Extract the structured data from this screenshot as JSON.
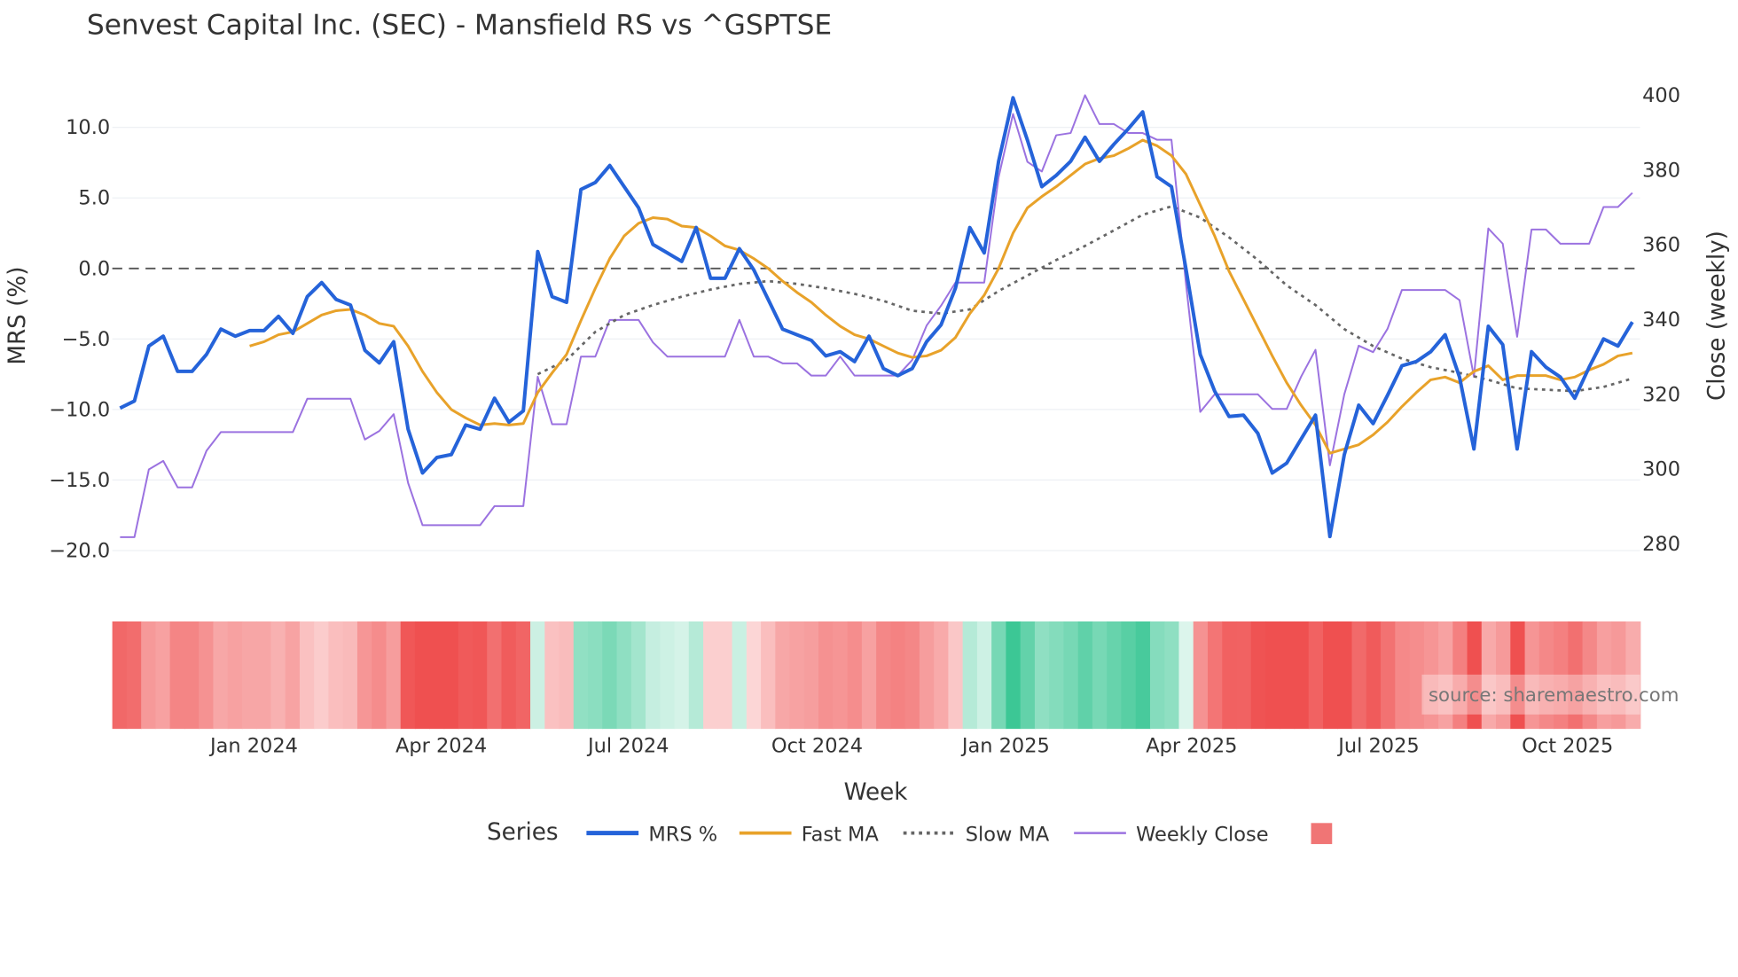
{
  "chart_data": {
    "type": "line",
    "title": "Senvest Capital Inc. (SEC) - Mansfield RS vs ^GSPTSE",
    "xlabel": "Week",
    "ylabel": "MRS (%)",
    "y2label": "Close (weekly)",
    "ylim": [
      -20,
      10
    ],
    "y2lim": [
      280,
      400
    ],
    "yticks": [
      "10.0",
      "5.0",
      "0.0",
      "−5.0",
      "−10.0",
      "−15.0",
      "−20.0"
    ],
    "ytick_values": [
      10,
      5,
      0,
      -5,
      -10,
      -15,
      -20
    ],
    "y2ticks": [
      "400",
      "380",
      "360",
      "340",
      "320",
      "300",
      "280"
    ],
    "y2tick_values": [
      400,
      380,
      360,
      340,
      320,
      300,
      280
    ],
    "xticks": [
      "Jan 2024",
      "Apr 2024",
      "Jul 2024",
      "Oct 2024",
      "Jan 2025",
      "Apr 2025",
      "Jul 2025",
      "Oct 2025"
    ],
    "xtick_week_index": [
      9.3,
      22.3,
      35.3,
      48.4,
      61.5,
      74.4,
      87.4,
      100.5
    ],
    "zero_line": 0,
    "grid": true,
    "legend_title": "Series",
    "legend_placement": "bottom-center",
    "source_note": "source: sharemaestro.com",
    "heatmap_source": "MRS %",
    "series": [
      {
        "name": "MRS %",
        "color": "#2563d9",
        "axis": "left",
        "values": [
          -9.9,
          -9.4,
          -5.5,
          -4.8,
          -7.3,
          -7.3,
          -6.1,
          -4.3,
          -4.8,
          -4.4,
          -4.4,
          -3.4,
          -4.6,
          -2.0,
          -1.0,
          -2.2,
          -2.6,
          -5.8,
          -6.7,
          -5.2,
          -11.4,
          -14.5,
          -13.4,
          -13.2,
          -11.1,
          -11.4,
          -9.2,
          -10.9,
          -10.1,
          1.2,
          -2.0,
          -2.4,
          5.6,
          6.1,
          7.3,
          5.8,
          4.3,
          1.7,
          1.1,
          0.5,
          2.9,
          -0.7,
          -0.7,
          1.4,
          -0.1,
          -2.2,
          -4.3,
          -4.7,
          -5.1,
          -6.2,
          -5.9,
          -6.6,
          -4.8,
          -7.1,
          -7.6,
          -7.1,
          -5.2,
          -4.0,
          -1.4,
          2.9,
          1.1,
          7.6,
          12.1,
          9.1,
          5.8,
          6.6,
          7.6,
          9.3,
          7.6,
          8.8,
          9.9,
          11.1,
          6.5,
          5.8,
          0.0,
          -6.1,
          -8.7,
          -10.5,
          -10.4,
          -11.7,
          -14.5,
          -13.8,
          -12.1,
          -10.4,
          -19.0,
          -13.2,
          -9.7,
          -11.0,
          -9.0,
          -6.9,
          -6.6,
          -5.9,
          -4.7,
          -7.7,
          -12.8,
          -4.1,
          -5.4,
          -12.8,
          -5.9,
          -7.0,
          -7.7,
          -9.2,
          -7.0,
          -5.0,
          -5.5,
          -3.8
        ]
      },
      {
        "name": "Fast MA",
        "color": "#e8a22a",
        "axis": "left",
        "start_index": 9,
        "values": [
          -5.5,
          -5.2,
          -4.7,
          -4.5,
          -3.9,
          -3.3,
          -3.0,
          -2.9,
          -3.3,
          -3.9,
          -4.1,
          -5.5,
          -7.3,
          -8.8,
          -10.0,
          -10.6,
          -11.1,
          -11.0,
          -11.1,
          -11.0,
          -8.8,
          -7.4,
          -6.1,
          -3.7,
          -1.4,
          0.7,
          2.3,
          3.2,
          3.6,
          3.5,
          3.0,
          2.9,
          2.3,
          1.6,
          1.3,
          0.7,
          0.0,
          -0.9,
          -1.7,
          -2.4,
          -3.3,
          -4.1,
          -4.7,
          -5.0,
          -5.5,
          -6.0,
          -6.3,
          -6.2,
          -5.8,
          -4.9,
          -3.2,
          -1.9,
          0.0,
          2.5,
          4.3,
          5.1,
          5.8,
          6.6,
          7.4,
          7.8,
          8.0,
          8.5,
          9.1,
          8.7,
          8.0,
          6.7,
          4.5,
          2.3,
          -0.2,
          -2.2,
          -4.2,
          -6.2,
          -8.1,
          -9.7,
          -11.1,
          -13.1,
          -12.8,
          -12.5,
          -11.8,
          -10.9,
          -9.8,
          -8.8,
          -7.9,
          -7.7,
          -8.1,
          -7.3,
          -6.9,
          -7.9,
          -7.6,
          -7.6,
          -7.6,
          -7.9,
          -7.7,
          -7.2,
          -6.8,
          -6.2,
          -6.0
        ]
      },
      {
        "name": "Slow MA",
        "color": "#666666",
        "axis": "left",
        "dash": "dot",
        "start_index": 29,
        "step": 2,
        "values": [
          -7.5,
          -6.5,
          -4.5,
          -3.3,
          -2.6,
          -2.0,
          -1.5,
          -1.1,
          -0.9,
          -1.1,
          -1.4,
          -1.8,
          -2.3,
          -3.0,
          -3.2,
          -2.9,
          -1.6,
          -0.5,
          0.6,
          1.6,
          2.7,
          3.8,
          4.4,
          3.6,
          2.2,
          0.6,
          -1.2,
          -2.6,
          -4.3,
          -5.5,
          -6.4,
          -7.0,
          -7.4,
          -7.9,
          -8.5,
          -8.6,
          -8.7,
          -8.4,
          -7.8
        ]
      },
      {
        "name": "Weekly Close",
        "color": "#9b72e0",
        "axis": "right",
        "values": [
          281.8,
          281.8,
          299.9,
          302.2,
          295.1,
          295.1,
          304.9,
          309.9,
          309.9,
          309.9,
          309.9,
          309.9,
          309.9,
          318.8,
          318.8,
          318.8,
          318.8,
          307.9,
          310.2,
          314.7,
          296.3,
          285.0,
          285.0,
          285.0,
          285.0,
          285.0,
          290.1,
          290.1,
          290.1,
          324.7,
          312.0,
          312.0,
          330.1,
          330.1,
          339.9,
          339.9,
          339.9,
          333.9,
          330.1,
          330.1,
          330.1,
          330.1,
          330.1,
          339.9,
          330.1,
          330.1,
          328.3,
          328.3,
          325.0,
          325.0,
          330.1,
          325.0,
          325.0,
          325.0,
          325.0,
          329.2,
          338.4,
          343.7,
          349.9,
          349.9,
          349.9,
          378.1,
          395.0,
          382.2,
          379.6,
          389.3,
          389.9,
          400.0,
          392.3,
          392.3,
          389.9,
          389.9,
          388.1,
          388.1,
          349.9,
          315.3,
          320.0,
          320.0,
          320.0,
          320.0,
          316.1,
          316.1,
          324.7,
          331.9,
          301.0,
          320.0,
          333.0,
          331.3,
          337.5,
          347.9,
          347.9,
          347.9,
          347.9,
          345.2,
          324.7,
          364.4,
          360.3,
          335.4,
          364.1,
          364.1,
          360.3,
          360.3,
          360.3,
          370.1,
          370.1,
          373.9
        ]
      }
    ]
  }
}
